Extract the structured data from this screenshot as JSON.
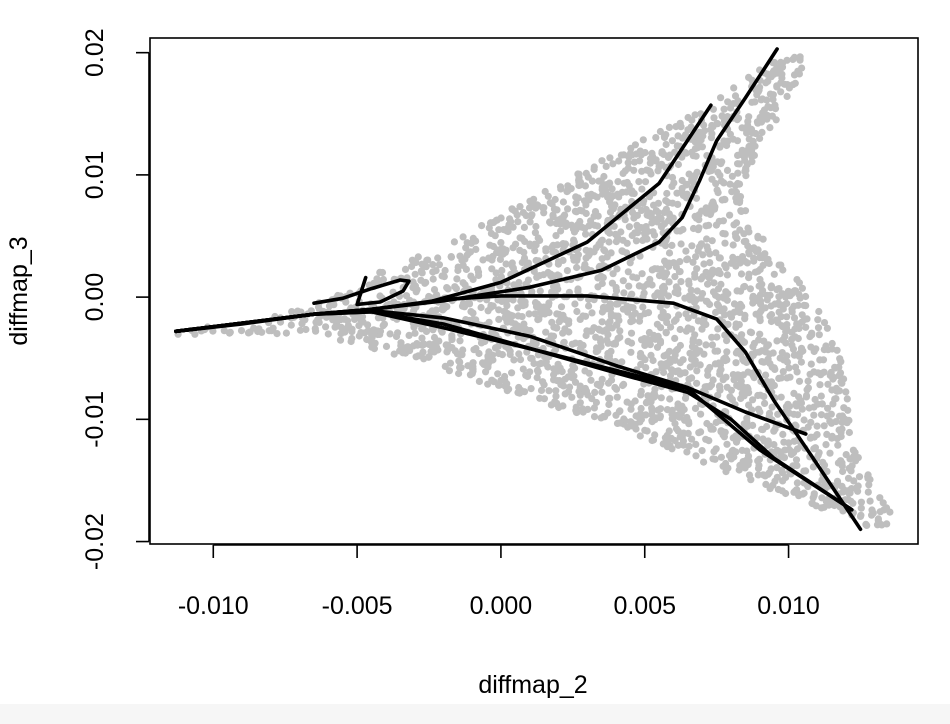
{
  "chart_data": {
    "type": "scatter",
    "xlabel": "diffmap_2",
    "ylabel": "diffmap_3",
    "xlim": [
      -0.0122,
      0.0145
    ],
    "ylim": [
      -0.0202,
      0.0212
    ],
    "x_ticks": [
      {
        "value": -0.01,
        "label": "-0.010"
      },
      {
        "value": -0.005,
        "label": "-0.005"
      },
      {
        "value": 0.0,
        "label": "0.000"
      },
      {
        "value": 0.005,
        "label": "0.005"
      },
      {
        "value": 0.01,
        "label": "0.010"
      }
    ],
    "y_ticks": [
      {
        "value": -0.02,
        "label": "-0.02"
      },
      {
        "value": -0.01,
        "label": "-0.01"
      },
      {
        "value": 0.0,
        "label": "0.00"
      },
      {
        "value": 0.01,
        "label": "0.01"
      },
      {
        "value": 0.02,
        "label": "0.02"
      }
    ],
    "grid": false,
    "point_color": "#bebebe",
    "line_color": "#000000",
    "point_cloud_outline": [
      [
        -0.0113,
        -0.0028
      ],
      [
        -0.0095,
        -0.0022
      ],
      [
        -0.008,
        -0.0016
      ],
      [
        -0.0065,
        -0.0006
      ],
      [
        -0.005,
        0.0012
      ],
      [
        -0.0035,
        0.0028
      ],
      [
        -0.002,
        0.0043
      ],
      [
        0.0,
        0.0068
      ],
      [
        0.002,
        0.0092
      ],
      [
        0.004,
        0.0118
      ],
      [
        0.006,
        0.0142
      ],
      [
        0.0075,
        0.0162
      ],
      [
        0.0085,
        0.018
      ],
      [
        0.0095,
        0.0193
      ],
      [
        0.0106,
        0.0198
      ],
      [
        0.0104,
        0.0178
      ],
      [
        0.0099,
        0.0155
      ],
      [
        0.0092,
        0.013
      ],
      [
        0.0086,
        0.0105
      ],
      [
        0.0083,
        0.0085
      ],
      [
        0.0086,
        0.0065
      ],
      [
        0.0094,
        0.004
      ],
      [
        0.0104,
        0.0012
      ],
      [
        0.0113,
        -0.0018
      ],
      [
        0.0118,
        -0.005
      ],
      [
        0.0121,
        -0.009
      ],
      [
        0.0124,
        -0.0125
      ],
      [
        0.013,
        -0.0158
      ],
      [
        0.0138,
        -0.0185
      ],
      [
        0.0128,
        -0.0188
      ],
      [
        0.0118,
        -0.0178
      ],
      [
        0.0105,
        -0.0168
      ],
      [
        0.009,
        -0.0155
      ],
      [
        0.007,
        -0.0135
      ],
      [
        0.005,
        -0.0115
      ],
      [
        0.003,
        -0.0098
      ],
      [
        0.001,
        -0.0083
      ],
      [
        -0.001,
        -0.0067
      ],
      [
        -0.003,
        -0.0052
      ],
      [
        -0.005,
        -0.0038
      ],
      [
        -0.007,
        -0.0032
      ],
      [
        -0.009,
        -0.003
      ],
      [
        -0.0113,
        -0.0031
      ]
    ],
    "curves": [
      {
        "points": [
          [
            -0.0113,
            -0.0028
          ],
          [
            -0.009,
            -0.0022
          ],
          [
            -0.0065,
            -0.0014
          ],
          [
            -0.0045,
            -0.001
          ],
          [
            -0.0025,
            -0.0004
          ],
          [
            0.0,
            0.0012
          ],
          [
            0.003,
            0.0045
          ],
          [
            0.0055,
            0.0093
          ],
          [
            0.0073,
            0.0157
          ]
        ]
      },
      {
        "points": [
          [
            -0.0113,
            -0.0028
          ],
          [
            -0.0065,
            -0.0014
          ],
          [
            -0.0045,
            -0.001
          ],
          [
            -0.002,
            -0.0003
          ],
          [
            0.001,
            0.0008
          ],
          [
            0.0035,
            0.0022
          ],
          [
            0.0055,
            0.0045
          ],
          [
            0.0063,
            0.0065
          ],
          [
            0.0069,
            0.0095
          ],
          [
            0.0075,
            0.0128
          ],
          [
            0.0085,
            0.0163
          ],
          [
            0.0096,
            0.0203
          ]
        ]
      },
      {
        "points": [
          [
            -0.0113,
            -0.0028
          ],
          [
            -0.0065,
            -0.0014
          ],
          [
            -0.0045,
            -0.001
          ],
          [
            -0.002,
            -0.0002
          ],
          [
            0.0,
            0.0001
          ],
          [
            0.003,
            0.0001
          ],
          [
            0.006,
            -0.0005
          ],
          [
            0.0075,
            -0.0018
          ],
          [
            0.0085,
            -0.0045
          ],
          [
            0.0095,
            -0.0085
          ],
          [
            0.0108,
            -0.013
          ],
          [
            0.0125,
            -0.019
          ]
        ]
      },
      {
        "points": [
          [
            -0.0113,
            -0.0028
          ],
          [
            -0.0065,
            -0.0014
          ],
          [
            -0.0045,
            -0.0011
          ],
          [
            -0.002,
            -0.0017
          ],
          [
            0.001,
            -0.0032
          ],
          [
            0.004,
            -0.0056
          ],
          [
            0.0065,
            -0.0074
          ],
          [
            0.0085,
            -0.0094
          ],
          [
            0.0106,
            -0.0112
          ]
        ]
      },
      {
        "points": [
          [
            -0.0113,
            -0.0028
          ],
          [
            -0.0065,
            -0.0014
          ],
          [
            -0.0045,
            -0.0012
          ],
          [
            -0.002,
            -0.0022
          ],
          [
            0.001,
            -0.0042
          ],
          [
            0.004,
            -0.0062
          ],
          [
            0.0065,
            -0.0078
          ],
          [
            0.008,
            -0.01
          ],
          [
            0.0095,
            -0.0132
          ],
          [
            0.0122,
            -0.0174
          ]
        ]
      },
      {
        "points": [
          [
            -0.0113,
            -0.0028
          ],
          [
            -0.0065,
            -0.0014
          ],
          [
            -0.0045,
            -0.0012
          ],
          [
            -0.002,
            -0.0025
          ],
          [
            0.0015,
            -0.0045
          ],
          [
            0.0045,
            -0.0063
          ],
          [
            0.0065,
            -0.0075
          ],
          [
            0.009,
            -0.0125
          ],
          [
            0.0122,
            -0.0174
          ]
        ]
      },
      {
        "points": [
          [
            -0.0065,
            -0.0005
          ],
          [
            -0.0055,
            -0.0001
          ],
          [
            -0.0045,
            0.0007
          ],
          [
            -0.0035,
            0.0014
          ],
          [
            -0.0032,
            0.0013
          ],
          [
            -0.0034,
            0.0005
          ],
          [
            -0.0042,
            -0.0004
          ],
          [
            -0.005,
            -0.0006
          ],
          [
            -0.0047,
            0.0016
          ]
        ]
      }
    ]
  }
}
